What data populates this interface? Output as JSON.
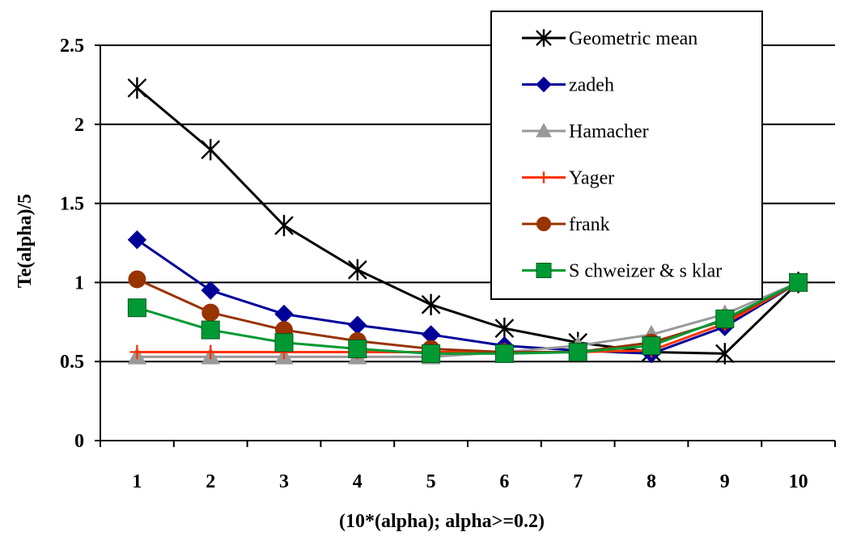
{
  "chart_data": {
    "type": "line",
    "title": "",
    "xlabel": "(10*(alpha); alpha>=0.2)",
    "ylabel": "Te(alpha)/5",
    "categories": [
      "1",
      "2",
      "3",
      "4",
      "5",
      "6",
      "7",
      "8",
      "9",
      "10"
    ],
    "y_ticks": [
      "0",
      "0.5",
      "1",
      "1.5",
      "2",
      "2.5"
    ],
    "ylim": [
      0,
      2.5
    ],
    "grid": "horizontal",
    "legend_position": "top-right",
    "series": [
      {
        "name": "Geometric mean",
        "color": "#000000",
        "marker": "asterisk-icon",
        "values": [
          2.23,
          1.84,
          1.36,
          1.08,
          0.86,
          0.71,
          0.62,
          0.56,
          0.55,
          1.0
        ]
      },
      {
        "name": "zadeh",
        "color": "#000099",
        "marker": "diamond-icon",
        "values": [
          1.27,
          0.95,
          0.8,
          0.73,
          0.67,
          0.6,
          0.57,
          0.55,
          0.72,
          1.0
        ]
      },
      {
        "name": "Hamacher",
        "color": "#999999",
        "marker": "triangle-icon",
        "values": [
          0.53,
          0.53,
          0.53,
          0.53,
          0.53,
          0.56,
          0.6,
          0.67,
          0.8,
          1.0
        ]
      },
      {
        "name": "Yager",
        "color": "#ff3300",
        "marker": "plus-icon",
        "values": [
          0.56,
          0.56,
          0.56,
          0.56,
          0.56,
          0.56,
          0.56,
          0.57,
          0.74,
          1.0
        ]
      },
      {
        "name": "frank",
        "color": "#993300",
        "marker": "circle-icon",
        "values": [
          1.02,
          0.81,
          0.7,
          0.63,
          0.58,
          0.56,
          0.56,
          0.62,
          0.76,
          1.0
        ]
      },
      {
        "name": "S chweizer & s klar",
        "color": "#009933",
        "marker": "square-icon",
        "values": [
          0.84,
          0.7,
          0.62,
          0.58,
          0.55,
          0.55,
          0.56,
          0.6,
          0.77,
          1.0
        ]
      }
    ]
  }
}
